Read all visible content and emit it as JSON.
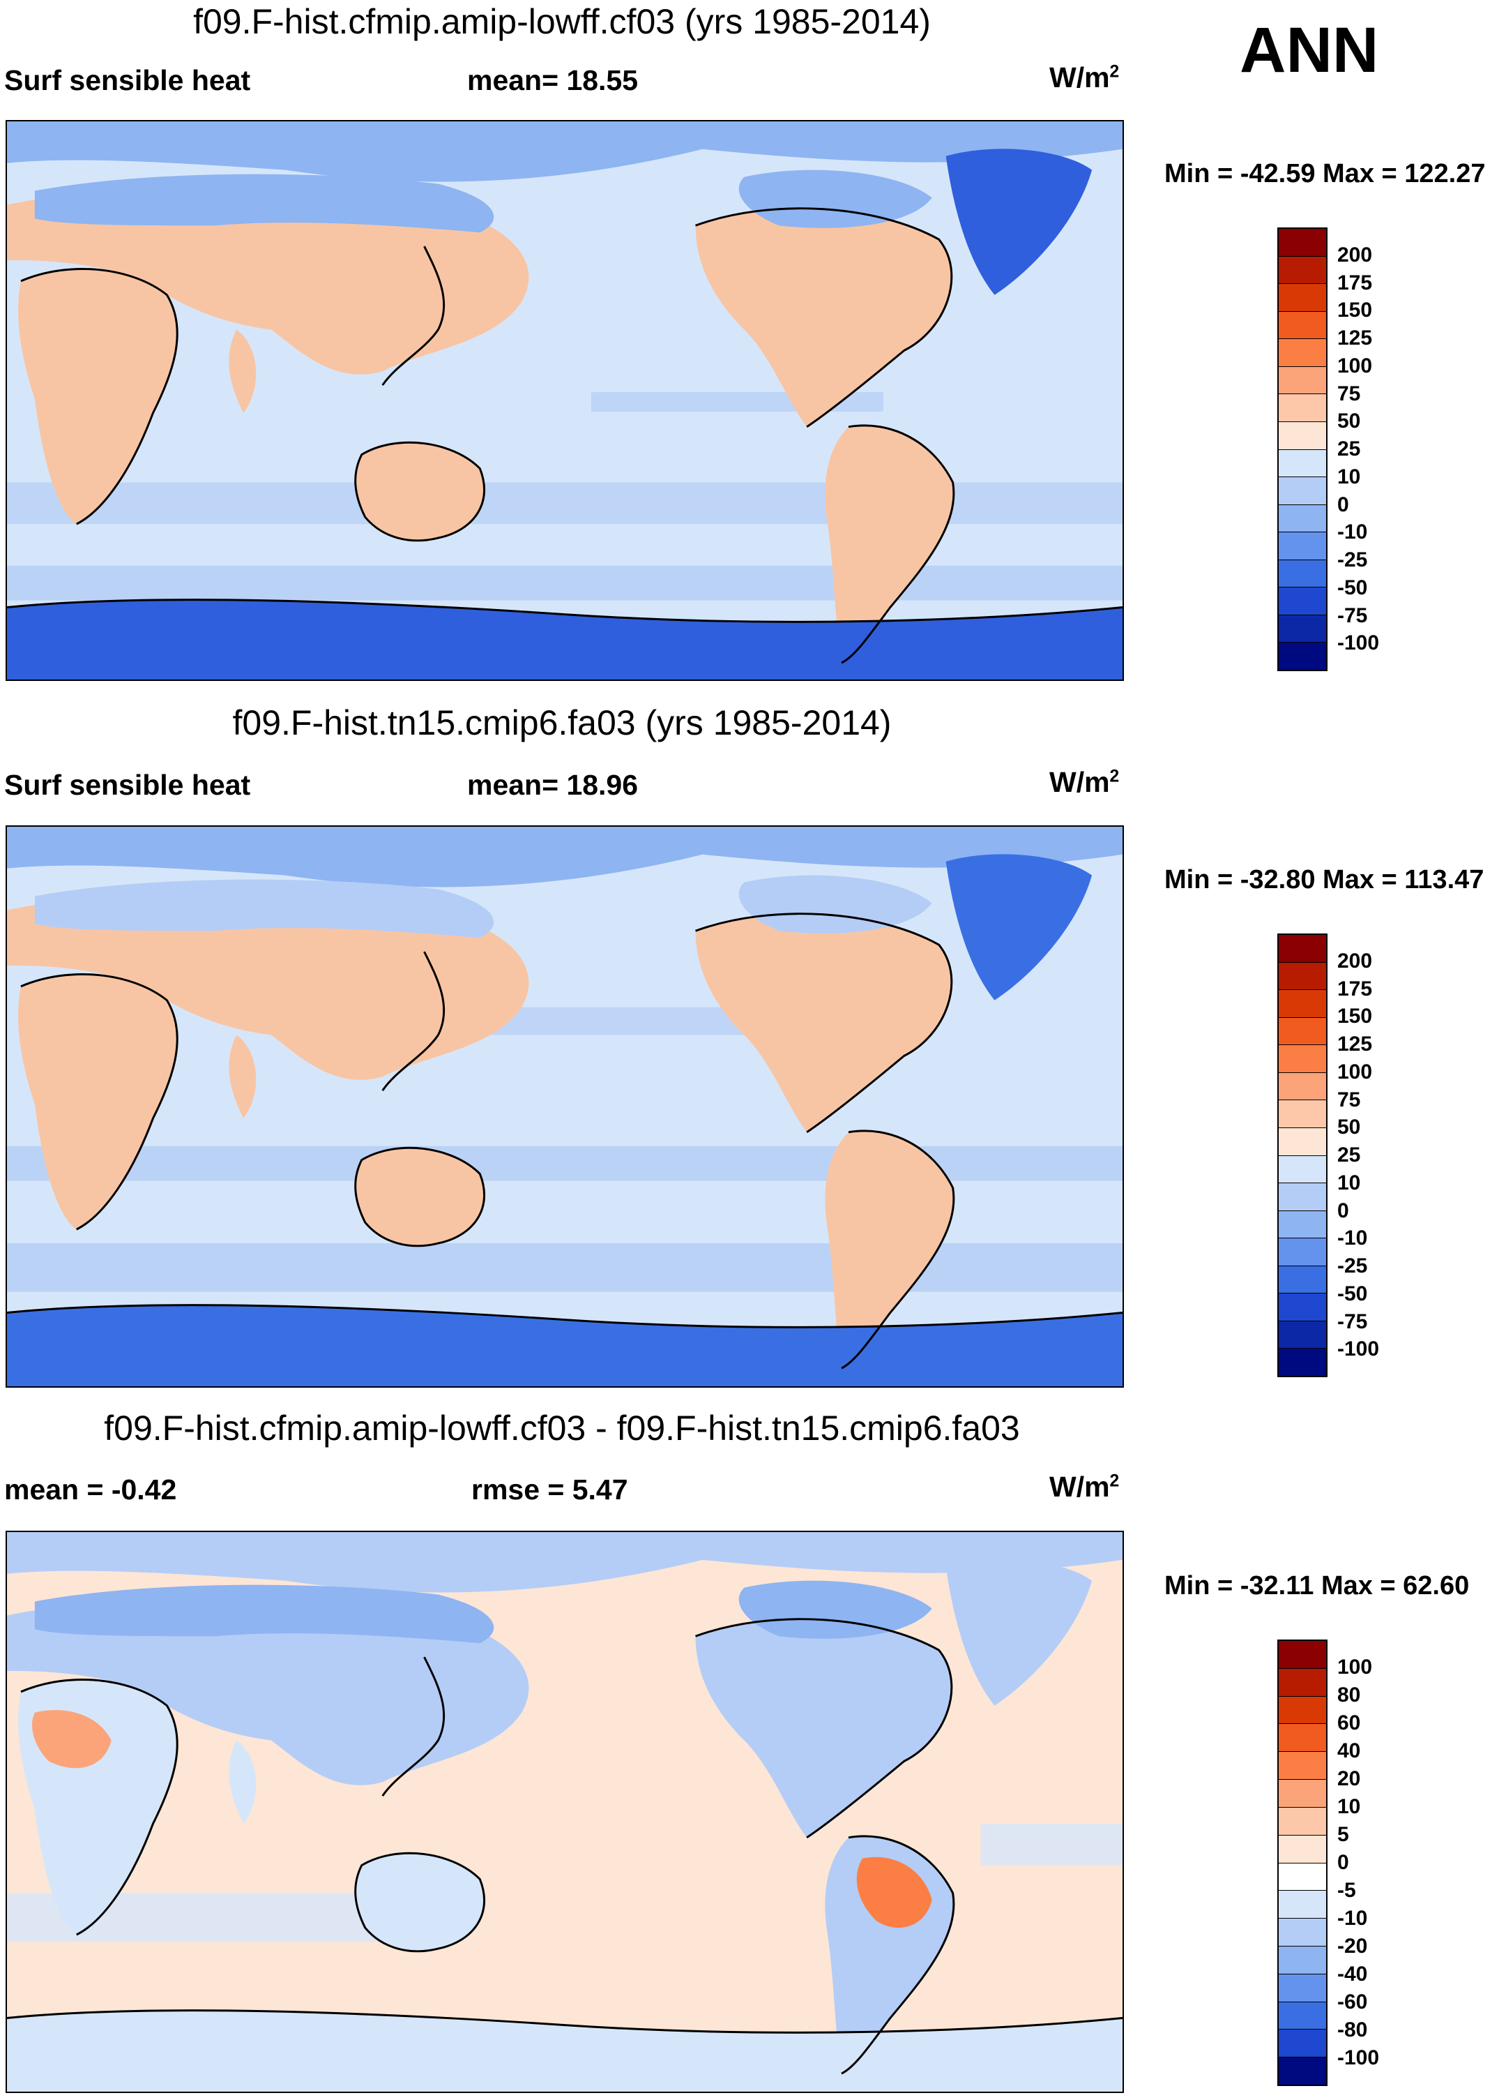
{
  "season": "ANN",
  "palette_abs": [
    "#ffffff"
  ],
  "panels": [
    {
      "title": "f09.F-hist.cfmip.amip-lowff.cf03 (yrs 1985-2014)",
      "left_label": "Surf sensible heat",
      "center_label": "mean=  18.55",
      "units_base": "W/m",
      "units_exp": "2",
      "minmax": "Min = -42.59 Max = 122.27",
      "colorbar": {
        "labels": [
          "200",
          "175",
          "150",
          "125",
          "100",
          "75",
          "50",
          "25",
          "10",
          "0",
          "-10",
          "-25",
          "-50",
          "-75",
          "-100"
        ],
        "colors": [
          "#8b0000",
          "#b71c00",
          "#d93a05",
          "#f15b1f",
          "#fb7f45",
          "#fba47a",
          "#fcc8a9",
          "#fde6d6",
          "#d6e6fa",
          "#b4cdf6",
          "#8eb4f2",
          "#6393ec",
          "#3a6fe4",
          "#1d48cf",
          "#0d28a6",
          "#000a80"
        ]
      },
      "map": {
        "ocean": "#d6e6fa",
        "land": "#f8c5a4",
        "polar": "#4f7fe6"
      }
    },
    {
      "title": "f09.F-hist.tn15.cmip6.fa03 (yrs 1985-2014)",
      "left_label": "Surf sensible heat",
      "center_label": "mean=  18.96",
      "units_base": "W/m",
      "units_exp": "2",
      "minmax": "Min = -32.80 Max = 113.47",
      "colorbar": {
        "labels": [
          "200",
          "175",
          "150",
          "125",
          "100",
          "75",
          "50",
          "25",
          "10",
          "0",
          "-10",
          "-25",
          "-50",
          "-75",
          "-100"
        ],
        "colors": [
          "#8b0000",
          "#b71c00",
          "#d93a05",
          "#f15b1f",
          "#fb7f45",
          "#fba47a",
          "#fcc8a9",
          "#fde6d6",
          "#d6e6fa",
          "#b4cdf6",
          "#8eb4f2",
          "#6393ec",
          "#3a6fe4",
          "#1d48cf",
          "#0d28a6",
          "#000a80"
        ]
      },
      "map": {
        "ocean": "#d6e6fa",
        "land": "#f8c5a4",
        "polar": "#4f7fe6"
      }
    },
    {
      "title": "f09.F-hist.cfmip.amip-lowff.cf03 - f09.F-hist.tn15.cmip6.fa03",
      "left_label": "mean =  -0.42",
      "center_label": "rmse =   5.47",
      "units_base": "W/m",
      "units_exp": "2",
      "minmax": "Min = -32.11 Max =  62.60",
      "colorbar": {
        "labels": [
          "100",
          "80",
          "60",
          "40",
          "20",
          "10",
          "5",
          "0",
          "-5",
          "-10",
          "-20",
          "-40",
          "-60",
          "-80",
          "-100"
        ],
        "colors": [
          "#8b0000",
          "#b71c00",
          "#d93a05",
          "#f15b1f",
          "#fb7f45",
          "#fba47a",
          "#fcc8a9",
          "#fde6d6",
          "#ffffff",
          "#d6e6fa",
          "#b4cdf6",
          "#8eb4f2",
          "#6393ec",
          "#3a6fe4",
          "#1d48cf",
          "#000a80"
        ]
      },
      "map": {
        "ocean": "#fde6d6",
        "land": "#b4cdf6",
        "polar": "#fde6d6"
      }
    }
  ]
}
